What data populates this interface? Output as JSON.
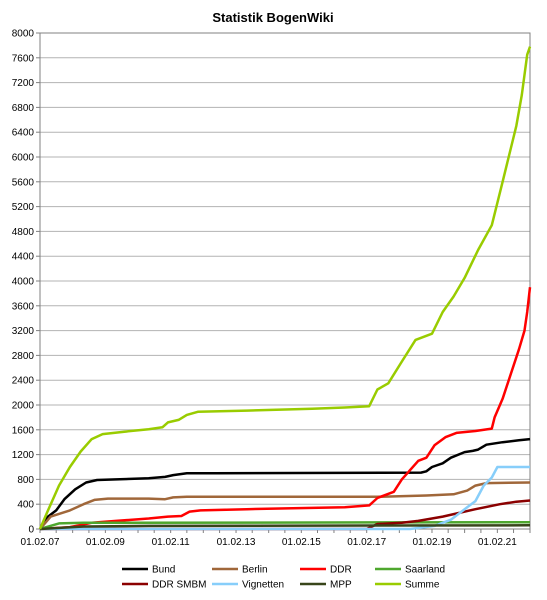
{
  "chart_data": {
    "type": "line",
    "title": "Statistik BogenWiki",
    "xlabel": "",
    "ylabel": "",
    "ylim": [
      0,
      8000
    ],
    "yticks": [
      0,
      400,
      800,
      1200,
      1600,
      2000,
      2400,
      2800,
      3200,
      3600,
      4000,
      4400,
      4800,
      5200,
      5600,
      6000,
      6400,
      6800,
      7200,
      7600,
      8000
    ],
    "xlim": [
      "2007-02-01",
      "2022-02-01"
    ],
    "xtick_labels": [
      "01.02.07",
      "01.02.09",
      "01.02.11",
      "01.02.13",
      "01.02.15",
      "01.02.17",
      "01.02.19",
      "01.02.21"
    ],
    "grid": "horizontal",
    "legend_position": "bottom",
    "series": [
      {
        "name": "Bund",
        "color": "#000000",
        "points": [
          [
            "2007-02-01",
            0
          ],
          [
            "2007-05-01",
            200
          ],
          [
            "2007-08-01",
            300
          ],
          [
            "2007-11-01",
            480
          ],
          [
            "2008-03-01",
            640
          ],
          [
            "2008-07-01",
            750
          ],
          [
            "2008-11-01",
            790
          ],
          [
            "2009-06-01",
            800
          ],
          [
            "2010-06-01",
            820
          ],
          [
            "2010-12-01",
            840
          ],
          [
            "2011-03-01",
            870
          ],
          [
            "2011-08-01",
            900
          ],
          [
            "2012-06-01",
            900
          ],
          [
            "2018-10-01",
            910
          ],
          [
            "2018-12-01",
            930
          ],
          [
            "2019-02-01",
            1000
          ],
          [
            "2019-06-01",
            1060
          ],
          [
            "2019-09-01",
            1150
          ],
          [
            "2020-02-01",
            1240
          ],
          [
            "2020-05-01",
            1260
          ],
          [
            "2020-07-01",
            1280
          ],
          [
            "2020-10-01",
            1360
          ],
          [
            "2021-04-01",
            1400
          ],
          [
            "2021-10-01",
            1430
          ],
          [
            "2022-02-01",
            1450
          ]
        ]
      },
      {
        "name": "Berlin",
        "color": "#a0673a",
        "points": [
          [
            "2007-02-01",
            0
          ],
          [
            "2007-06-01",
            200
          ],
          [
            "2008-01-01",
            300
          ],
          [
            "2008-06-01",
            400
          ],
          [
            "2008-10-01",
            470
          ],
          [
            "2009-03-01",
            490
          ],
          [
            "2010-06-01",
            490
          ],
          [
            "2010-12-01",
            480
          ],
          [
            "2011-03-01",
            510
          ],
          [
            "2011-08-01",
            520
          ],
          [
            "2017-06-01",
            520
          ],
          [
            "2018-12-01",
            540
          ],
          [
            "2019-10-01",
            560
          ],
          [
            "2020-03-01",
            620
          ],
          [
            "2020-06-01",
            700
          ],
          [
            "2020-10-01",
            740
          ],
          [
            "2022-02-01",
            750
          ]
        ]
      },
      {
        "name": "DDR",
        "color": "#ff0000",
        "points": [
          [
            "2007-02-01",
            0
          ],
          [
            "2008-01-01",
            30
          ],
          [
            "2008-09-01",
            100
          ],
          [
            "2009-06-01",
            130
          ],
          [
            "2010-06-01",
            170
          ],
          [
            "2011-01-01",
            200
          ],
          [
            "2011-06-01",
            210
          ],
          [
            "2011-09-01",
            280
          ],
          [
            "2012-01-01",
            300
          ],
          [
            "2013-06-01",
            320
          ],
          [
            "2015-06-01",
            340
          ],
          [
            "2016-06-01",
            350
          ],
          [
            "2017-03-01",
            380
          ],
          [
            "2017-06-01",
            500
          ],
          [
            "2017-12-01",
            600
          ],
          [
            "2018-03-01",
            800
          ],
          [
            "2018-09-01",
            1100
          ],
          [
            "2018-12-01",
            1150
          ],
          [
            "2019-03-01",
            1350
          ],
          [
            "2019-07-01",
            1480
          ],
          [
            "2019-11-01",
            1550
          ],
          [
            "2020-06-01",
            1580
          ],
          [
            "2020-12-01",
            1620
          ],
          [
            "2021-01-01",
            1800
          ],
          [
            "2021-04-01",
            2100
          ],
          [
            "2021-07-01",
            2500
          ],
          [
            "2021-10-01",
            2900
          ],
          [
            "2021-12-01",
            3200
          ],
          [
            "2022-01-01",
            3500
          ],
          [
            "2022-02-01",
            3900
          ]
        ]
      },
      {
        "name": "Saarland",
        "color": "#4ea72e",
        "points": [
          [
            "2007-02-01",
            0
          ],
          [
            "2007-09-01",
            90
          ],
          [
            "2008-06-01",
            100
          ],
          [
            "2022-02-01",
            110
          ]
        ]
      },
      {
        "name": "DDR SMBM",
        "color": "#8b0000",
        "points": [
          [
            "2007-02-01",
            0
          ],
          [
            "2017-02-01",
            0
          ],
          [
            "2017-06-01",
            80
          ],
          [
            "2018-03-01",
            100
          ],
          [
            "2018-09-01",
            130
          ],
          [
            "2019-06-01",
            200
          ],
          [
            "2020-06-01",
            320
          ],
          [
            "2021-03-01",
            400
          ],
          [
            "2021-09-01",
            440
          ],
          [
            "2022-02-01",
            460
          ]
        ]
      },
      {
        "name": "Vignetten",
        "color": "#87cefa",
        "points": [
          [
            "2007-02-01",
            0
          ],
          [
            "2018-06-01",
            0
          ],
          [
            "2019-03-01",
            50
          ],
          [
            "2019-09-01",
            150
          ],
          [
            "2020-03-01",
            350
          ],
          [
            "2020-06-01",
            450
          ],
          [
            "2020-09-01",
            700
          ],
          [
            "2020-12-01",
            830
          ],
          [
            "2021-02-01",
            1000
          ],
          [
            "2022-02-01",
            1000
          ]
        ]
      },
      {
        "name": "MPP",
        "color": "#38451a",
        "points": [
          [
            "2007-02-01",
            0
          ],
          [
            "2008-06-01",
            40
          ],
          [
            "2010-06-01",
            50
          ],
          [
            "2022-02-01",
            60
          ]
        ]
      },
      {
        "name": "Summe",
        "color": "#99cc00",
        "points": [
          [
            "2007-02-01",
            0
          ],
          [
            "2007-05-01",
            300
          ],
          [
            "2007-09-01",
            700
          ],
          [
            "2008-01-01",
            1000
          ],
          [
            "2008-05-01",
            1250
          ],
          [
            "2008-09-01",
            1450
          ],
          [
            "2009-01-01",
            1530
          ],
          [
            "2009-09-01",
            1570
          ],
          [
            "2010-06-01",
            1610
          ],
          [
            "2010-11-01",
            1640
          ],
          [
            "2011-01-01",
            1720
          ],
          [
            "2011-05-01",
            1760
          ],
          [
            "2011-08-01",
            1840
          ],
          [
            "2011-12-01",
            1890
          ],
          [
            "2013-06-01",
            1910
          ],
          [
            "2015-06-01",
            1940
          ],
          [
            "2016-06-01",
            1960
          ],
          [
            "2017-03-01",
            1980
          ],
          [
            "2017-06-01",
            2250
          ],
          [
            "2017-10-01",
            2350
          ],
          [
            "2018-03-01",
            2700
          ],
          [
            "2018-08-01",
            3050
          ],
          [
            "2019-02-01",
            3150
          ],
          [
            "2019-06-01",
            3500
          ],
          [
            "2019-10-01",
            3750
          ],
          [
            "2020-02-01",
            4050
          ],
          [
            "2020-07-01",
            4500
          ],
          [
            "2020-12-01",
            4900
          ],
          [
            "2021-04-01",
            5600
          ],
          [
            "2021-09-01",
            6500
          ],
          [
            "2021-11-01",
            7000
          ],
          [
            "2022-01-01",
            7650
          ],
          [
            "2022-02-01",
            7780
          ]
        ]
      }
    ]
  }
}
